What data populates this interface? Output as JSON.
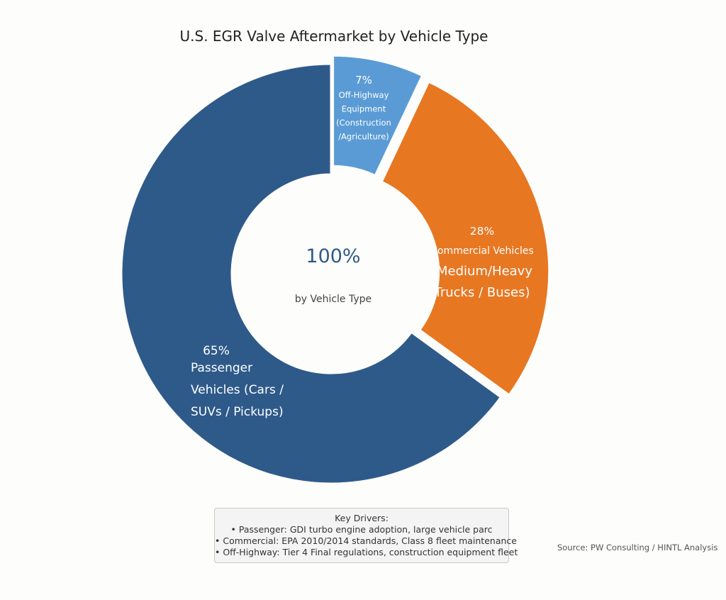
{
  "chart_data": {
    "type": "pie",
    "title": "U.S. EGR Valve Aftermarket by Vehicle Type",
    "hole": true,
    "center_value": "100%",
    "center_label": "by Vehicle Type",
    "slices": [
      {
        "label": "Off-Highway Equipment (Construction /Agriculture)",
        "value": 7,
        "pct_text": "7%",
        "label_lines": [
          "Off-Highway",
          "Equipment",
          "(Construction",
          "/Agriculture)"
        ],
        "color": "#5b9bd5",
        "pulled": true
      },
      {
        "label": "Commercial Vehicles (Medium/Heavy Trucks / Buses)",
        "value": 28,
        "pct_text": "28%",
        "label_lines": [
          "Commercial Vehicles",
          "(Medium/Heavy",
          "Trucks / Buses)"
        ],
        "color": "#e87722",
        "pulled": true
      },
      {
        "label": "Passenger Vehicles (Cars / SUVs / Pickups)",
        "value": 65,
        "pct_text": "65%",
        "label_lines": [
          "Passenger",
          "Vehicles (Cars /",
          "SUVs / Pickups)"
        ],
        "color": "#2e5a8a",
        "pulled": false
      }
    ]
  },
  "annotations": {
    "key_drivers": {
      "heading": "Key Drivers:",
      "lines": [
        "• Passenger: GDI turbo engine adoption, large vehicle parc",
        "• Commercial: EPA 2010/2014 standards, Class 8 fleet maintenance",
        "• Off-Highway: Tier 4 Final regulations, construction equipment fleet"
      ]
    },
    "source": "Source: PW Consulting / HINTL Analysis"
  }
}
